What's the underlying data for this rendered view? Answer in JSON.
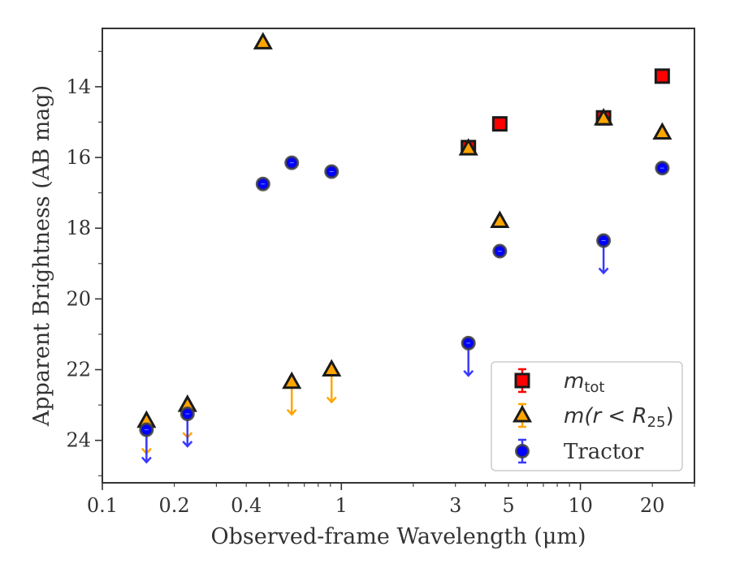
{
  "chart_data": {
    "type": "scatter",
    "title": "",
    "xlabel": "Observed-frame Wavelength (μm)",
    "ylabel": "Apparent Brightness (AB mag)",
    "xscale": "log",
    "xlim": [
      0.1,
      30
    ],
    "ylim": [
      25.2,
      12.35
    ],
    "y_inverted": true,
    "grid": false,
    "legend_position": "lower-right",
    "x_ticks": [
      {
        "value": 0.1,
        "label": "0.1"
      },
      {
        "value": 0.2,
        "label": "0.2"
      },
      {
        "value": 0.4,
        "label": "0.4"
      },
      {
        "value": 1,
        "label": "1"
      },
      {
        "value": 3,
        "label": "3"
      },
      {
        "value": 5,
        "label": "5"
      },
      {
        "value": 10,
        "label": "10"
      },
      {
        "value": 20,
        "label": "20"
      }
    ],
    "y_ticks": [
      14,
      16,
      18,
      20,
      22,
      24
    ],
    "series": [
      {
        "name": "m_tot",
        "marker": "square",
        "color": "#ff0000",
        "edge_color": "#1a1a1a",
        "points": [
          {
            "x": 3.4,
            "y": 15.72,
            "upper_limit": false
          },
          {
            "x": 4.6,
            "y": 15.05,
            "upper_limit": false
          },
          {
            "x": 12.5,
            "y": 14.88,
            "upper_limit": false
          },
          {
            "x": 22.0,
            "y": 13.7,
            "upper_limit": false
          }
        ]
      },
      {
        "name": "m(r<R25)",
        "marker": "triangle",
        "color": "#ffa500",
        "edge_color": "#1a1a1a",
        "points": [
          {
            "x": 0.153,
            "y": 23.45,
            "upper_limit": true
          },
          {
            "x": 0.227,
            "y": 23.0,
            "upper_limit": true
          },
          {
            "x": 0.47,
            "y": 12.75,
            "upper_limit": false
          },
          {
            "x": 0.62,
            "y": 22.35,
            "upper_limit": true
          },
          {
            "x": 0.91,
            "y": 22.0,
            "upper_limit": true
          },
          {
            "x": 3.4,
            "y": 15.75,
            "upper_limit": false
          },
          {
            "x": 4.6,
            "y": 17.8,
            "upper_limit": false
          },
          {
            "x": 12.5,
            "y": 14.9,
            "upper_limit": false
          },
          {
            "x": 22.0,
            "y": 15.3,
            "upper_limit": false
          }
        ]
      },
      {
        "name": "Tractor",
        "marker": "circle",
        "color": "#0000ff",
        "edge_color": "#404040",
        "points": [
          {
            "x": 0.153,
            "y": 23.7,
            "upper_limit": true
          },
          {
            "x": 0.227,
            "y": 23.25,
            "upper_limit": true
          },
          {
            "x": 0.47,
            "y": 16.75,
            "upper_limit": false
          },
          {
            "x": 0.62,
            "y": 16.15,
            "upper_limit": false
          },
          {
            "x": 0.91,
            "y": 16.4,
            "upper_limit": false
          },
          {
            "x": 3.4,
            "y": 21.25,
            "upper_limit": true
          },
          {
            "x": 4.6,
            "y": 18.65,
            "upper_limit": false
          },
          {
            "x": 12.5,
            "y": 18.35,
            "upper_limit": true
          },
          {
            "x": 22.0,
            "y": 16.3,
            "upper_limit": false
          }
        ]
      }
    ]
  },
  "legend": {
    "items": [
      {
        "series": "m_tot",
        "main": "m",
        "sub": "tot",
        "tail": ""
      },
      {
        "series": "m(r<R25)",
        "main": "m(r < R",
        "sub": "25",
        "tail": ")"
      },
      {
        "series": "Tractor",
        "main": "Tractor",
        "sub": "",
        "tail": ""
      }
    ]
  }
}
